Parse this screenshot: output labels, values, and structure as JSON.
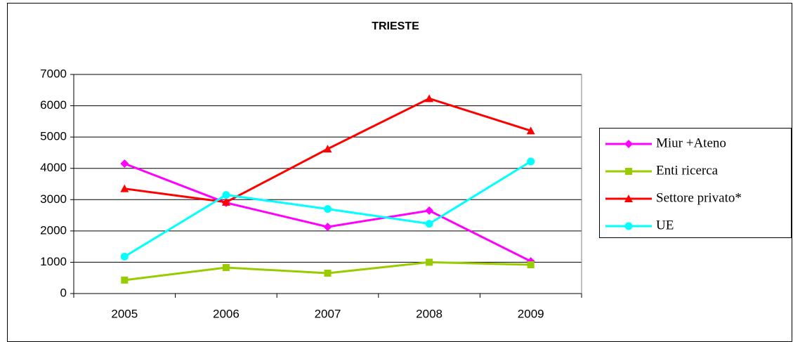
{
  "chart_data": {
    "type": "line",
    "title": "TRIESTE",
    "categories": [
      "2005",
      "2006",
      "2007",
      "2008",
      "2009"
    ],
    "series": [
      {
        "name": "Miur +Ateno",
        "color": "#ff00ff",
        "marker": "diamond",
        "values": [
          4150,
          2900,
          2130,
          2650,
          1030
        ]
      },
      {
        "name": "Enti ricerca",
        "color": "#99cc00",
        "marker": "square",
        "values": [
          430,
          830,
          650,
          1000,
          920
        ]
      },
      {
        "name": "Settore privato*",
        "color": "#ff0000",
        "marker": "triangle",
        "values": [
          3350,
          2920,
          4620,
          6230,
          5200
        ]
      },
      {
        "name": "UE",
        "color": "#00ffff",
        "marker": "circle",
        "values": [
          1180,
          3150,
          2700,
          2230,
          4220
        ]
      }
    ],
    "ylim": [
      0,
      7000
    ],
    "yticks": [
      0,
      1000,
      2000,
      3000,
      4000,
      5000,
      6000,
      7000
    ],
    "grid": true,
    "legend": "right"
  }
}
